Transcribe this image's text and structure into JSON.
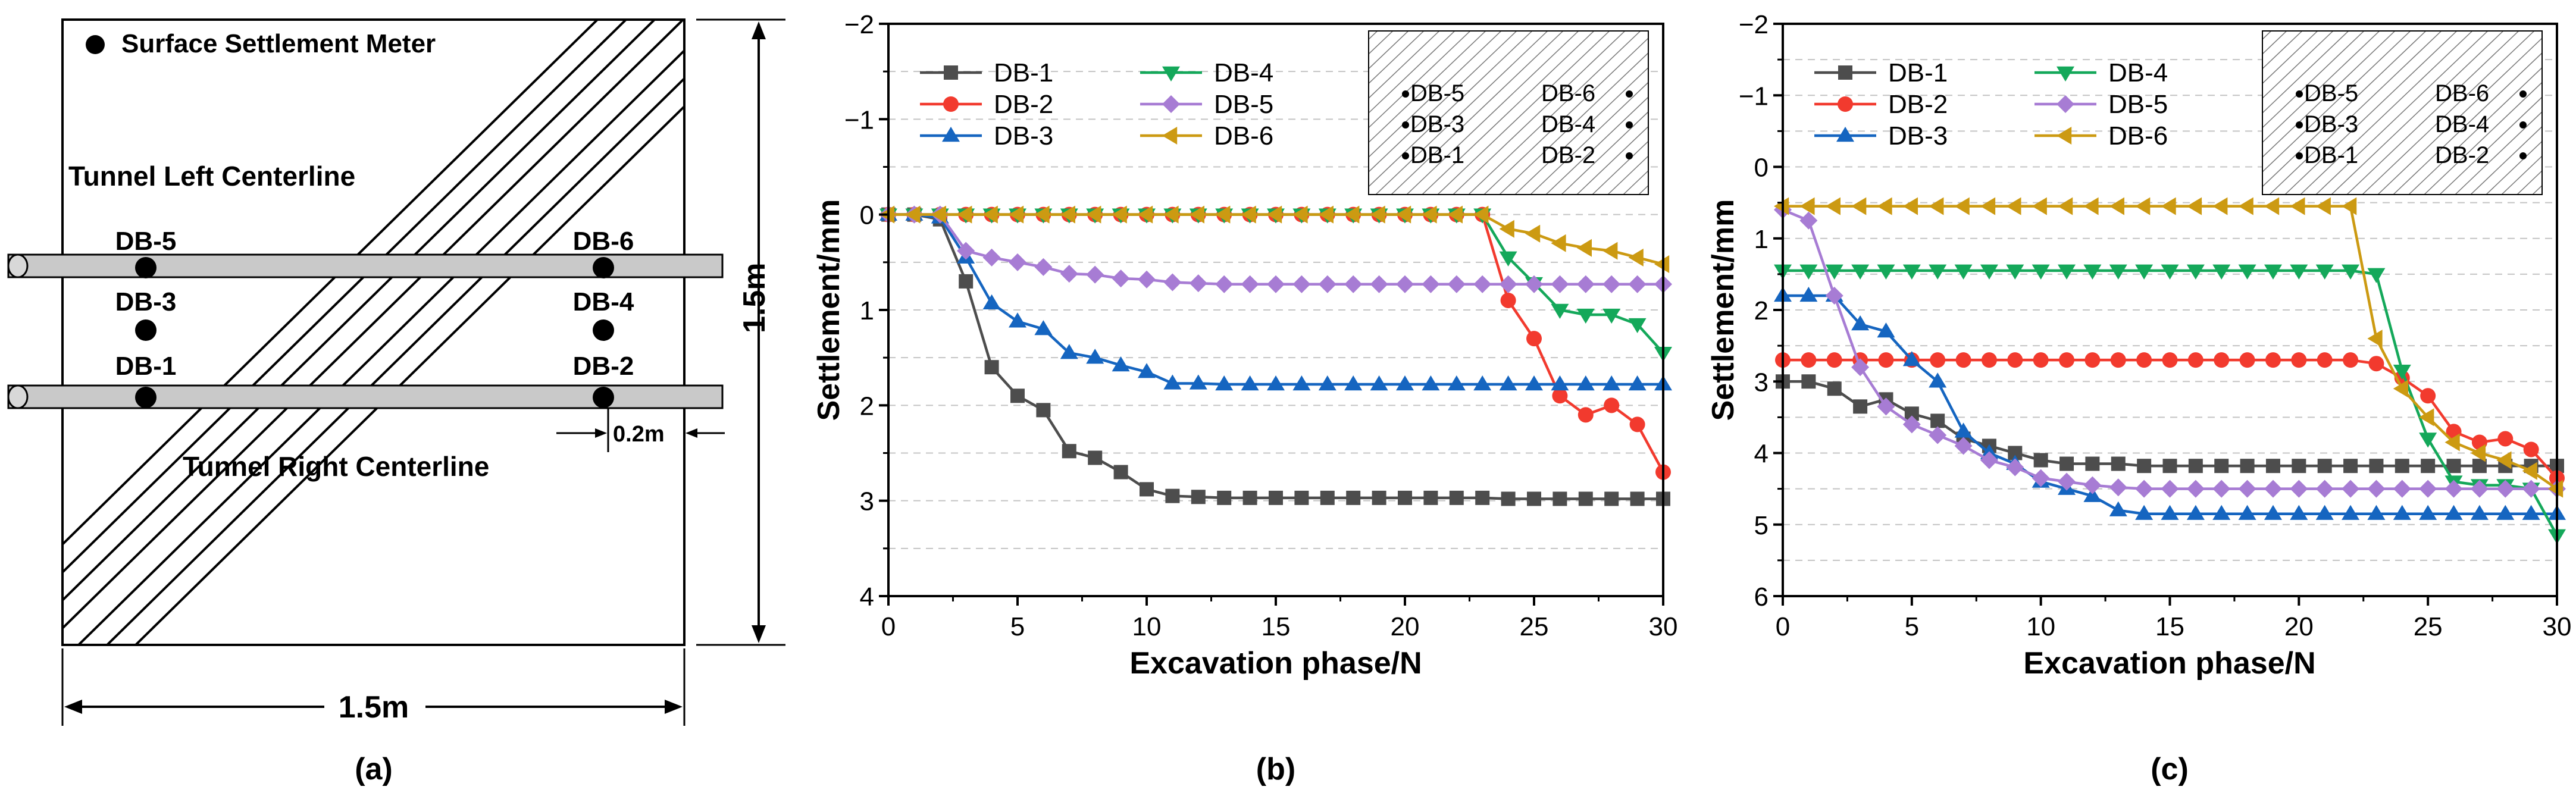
{
  "panel_a": {
    "legend_label": "Surface Settlement Meter",
    "left_centerline": "Tunnel Left Centerline",
    "right_centerline": "Tunnel Right Centerline",
    "width_label": "1.5m",
    "height_label": "1.5m",
    "offset_label": "0.2m",
    "caption": "(a)",
    "points": [
      {
        "id": "DB-5",
        "col": "left",
        "row": "upper"
      },
      {
        "id": "DB-3",
        "col": "left",
        "row": "middle"
      },
      {
        "id": "DB-1",
        "col": "left",
        "row": "lower"
      },
      {
        "id": "DB-6",
        "col": "right",
        "row": "upper"
      },
      {
        "id": "DB-4",
        "col": "right",
        "row": "middle"
      },
      {
        "id": "DB-2",
        "col": "right",
        "row": "lower"
      }
    ]
  },
  "colors": {
    "DB-1": "#4d4d4d",
    "DB-2": "#f23a2e",
    "DB-3": "#1565c0",
    "DB-4": "#14a85a",
    "DB-5": "#a77cd4",
    "DB-6": "#cc9a12"
  },
  "chart_data": [
    {
      "type": "line",
      "panel": "b",
      "caption": "(b)",
      "xlabel": "Excavation phase/N",
      "ylabel": "Settlement/mm",
      "xlim": [
        0,
        30
      ],
      "ylim": [
        -2,
        4
      ],
      "y_inverted": true,
      "xticks": [
        0,
        5,
        10,
        15,
        20,
        25,
        30
      ],
      "yticks": [
        -2,
        -1,
        0,
        1,
        2,
        3,
        4
      ],
      "ytick_labels": [
        "−2",
        "−1",
        "0",
        "1",
        "2",
        "3",
        "4"
      ],
      "grid": "dashed horizontal at every 0.5",
      "legend_position": "top-left",
      "inset_labels": [
        [
          "DB-5",
          "DB-6"
        ],
        [
          "DB-3",
          "DB-4"
        ],
        [
          "DB-1",
          "DB-2"
        ]
      ],
      "x": [
        0,
        1,
        2,
        3,
        4,
        5,
        6,
        7,
        8,
        9,
        10,
        11,
        12,
        13,
        14,
        15,
        16,
        17,
        18,
        19,
        20,
        21,
        22,
        23,
        24,
        25,
        26,
        27,
        28,
        29,
        30
      ],
      "series": [
        {
          "name": "DB-1",
          "marker": "square",
          "values": [
            0,
            0,
            0.05,
            0.7,
            1.6,
            1.9,
            2.05,
            2.48,
            2.55,
            2.7,
            2.88,
            2.95,
            2.96,
            2.97,
            2.97,
            2.97,
            2.97,
            2.97,
            2.97,
            2.97,
            2.97,
            2.97,
            2.97,
            2.97,
            2.98,
            2.98,
            2.98,
            2.98,
            2.98,
            2.98,
            2.98
          ]
        },
        {
          "name": "DB-2",
          "marker": "circle",
          "values": [
            0,
            0,
            0,
            0,
            0,
            0,
            0,
            0,
            0,
            0,
            0,
            0,
            0,
            0,
            0,
            0,
            0,
            0,
            0,
            0,
            0,
            0,
            0,
            0,
            0.9,
            1.3,
            1.9,
            2.1,
            2.0,
            2.2,
            2.7
          ]
        },
        {
          "name": "DB-3",
          "marker": "triangle-up",
          "values": [
            0,
            0,
            0.03,
            0.45,
            0.93,
            1.12,
            1.2,
            1.45,
            1.5,
            1.58,
            1.65,
            1.77,
            1.77,
            1.78,
            1.78,
            1.78,
            1.78,
            1.78,
            1.78,
            1.78,
            1.78,
            1.78,
            1.78,
            1.78,
            1.78,
            1.78,
            1.78,
            1.78,
            1.78,
            1.78,
            1.78
          ]
        },
        {
          "name": "DB-4",
          "marker": "triangle-down",
          "values": [
            0,
            0,
            0,
            0,
            0,
            0,
            0,
            0,
            0,
            0,
            0,
            0,
            0,
            0,
            0,
            0,
            0,
            0,
            0,
            0,
            0,
            0,
            0,
            0,
            0.45,
            0.72,
            1.0,
            1.05,
            1.05,
            1.15,
            1.45
          ]
        },
        {
          "name": "DB-5",
          "marker": "diamond",
          "values": [
            0,
            0,
            0,
            0.38,
            0.45,
            0.5,
            0.55,
            0.62,
            0.63,
            0.67,
            0.68,
            0.71,
            0.72,
            0.73,
            0.73,
            0.73,
            0.73,
            0.73,
            0.73,
            0.73,
            0.73,
            0.73,
            0.73,
            0.73,
            0.73,
            0.73,
            0.73,
            0.73,
            0.73,
            0.73,
            0.73
          ]
        },
        {
          "name": "DB-6",
          "marker": "triangle-left",
          "values": [
            0,
            0,
            0,
            0,
            0,
            0,
            0,
            0,
            0,
            0,
            0,
            0,
            0,
            0,
            0,
            0,
            0,
            0,
            0,
            0,
            0,
            0,
            0,
            0,
            0.15,
            0.2,
            0.3,
            0.35,
            0.38,
            0.45,
            0.52
          ]
        }
      ]
    },
    {
      "type": "line",
      "panel": "c",
      "caption": "(c)",
      "xlabel": "Excavation phase/N",
      "ylabel": "Settlement/mm",
      "xlim": [
        0,
        30
      ],
      "ylim": [
        -2,
        6
      ],
      "y_inverted": true,
      "xticks": [
        0,
        5,
        10,
        15,
        20,
        25,
        30
      ],
      "yticks": [
        -2,
        -1,
        0,
        1,
        2,
        3,
        4,
        5,
        6
      ],
      "ytick_labels": [
        "−2",
        "−1",
        "0",
        "1",
        "2",
        "3",
        "4",
        "5",
        "6"
      ],
      "grid": "dashed horizontal at every 0.5",
      "legend_position": "top-left",
      "inset_labels": [
        [
          "DB-5",
          "DB-6"
        ],
        [
          "DB-3",
          "DB-4"
        ],
        [
          "DB-1",
          "DB-2"
        ]
      ],
      "x": [
        0,
        1,
        2,
        3,
        4,
        5,
        6,
        7,
        8,
        9,
        10,
        11,
        12,
        13,
        14,
        15,
        16,
        17,
        18,
        19,
        20,
        21,
        22,
        23,
        24,
        25,
        26,
        27,
        28,
        29,
        30
      ],
      "series": [
        {
          "name": "DB-1",
          "marker": "square",
          "values": [
            3.0,
            3.0,
            3.1,
            3.35,
            3.25,
            3.45,
            3.55,
            3.8,
            3.9,
            4.0,
            4.1,
            4.15,
            4.15,
            4.15,
            4.18,
            4.18,
            4.18,
            4.18,
            4.18,
            4.18,
            4.18,
            4.18,
            4.18,
            4.18,
            4.18,
            4.18,
            4.18,
            4.18,
            4.18,
            4.18,
            4.18
          ]
        },
        {
          "name": "DB-2",
          "marker": "circle",
          "values": [
            2.7,
            2.7,
            2.7,
            2.7,
            2.7,
            2.7,
            2.7,
            2.7,
            2.7,
            2.7,
            2.7,
            2.7,
            2.7,
            2.7,
            2.7,
            2.7,
            2.7,
            2.7,
            2.7,
            2.7,
            2.7,
            2.7,
            2.7,
            2.75,
            2.95,
            3.2,
            3.7,
            3.85,
            3.8,
            3.95,
            4.35
          ]
        },
        {
          "name": "DB-3",
          "marker": "triangle-up",
          "values": [
            1.8,
            1.8,
            1.8,
            2.2,
            2.3,
            2.7,
            3.0,
            3.7,
            4.0,
            4.15,
            4.4,
            4.5,
            4.6,
            4.8,
            4.85,
            4.85,
            4.85,
            4.85,
            4.85,
            4.85,
            4.85,
            4.85,
            4.85,
            4.85,
            4.85,
            4.85,
            4.85,
            4.85,
            4.85,
            4.85,
            4.85
          ]
        },
        {
          "name": "DB-4",
          "marker": "triangle-down",
          "values": [
            1.45,
            1.45,
            1.45,
            1.45,
            1.45,
            1.45,
            1.45,
            1.45,
            1.45,
            1.45,
            1.45,
            1.45,
            1.45,
            1.45,
            1.45,
            1.45,
            1.45,
            1.45,
            1.45,
            1.45,
            1.45,
            1.45,
            1.45,
            1.5,
            2.85,
            3.8,
            4.4,
            4.45,
            4.45,
            4.5,
            5.15
          ]
        },
        {
          "name": "DB-5",
          "marker": "diamond",
          "values": [
            0.6,
            0.75,
            1.8,
            2.8,
            3.35,
            3.6,
            3.75,
            3.9,
            4.1,
            4.2,
            4.35,
            4.4,
            4.45,
            4.48,
            4.5,
            4.5,
            4.5,
            4.5,
            4.5,
            4.5,
            4.5,
            4.5,
            4.5,
            4.5,
            4.5,
            4.5,
            4.5,
            4.5,
            4.5,
            4.5,
            4.5
          ]
        },
        {
          "name": "DB-6",
          "marker": "triangle-left",
          "values": [
            0.55,
            0.55,
            0.55,
            0.55,
            0.55,
            0.55,
            0.55,
            0.55,
            0.55,
            0.55,
            0.55,
            0.55,
            0.55,
            0.55,
            0.55,
            0.55,
            0.55,
            0.55,
            0.55,
            0.55,
            0.55,
            0.55,
            0.55,
            2.4,
            3.1,
            3.5,
            3.85,
            4.0,
            4.1,
            4.25,
            4.5
          ]
        }
      ]
    }
  ]
}
